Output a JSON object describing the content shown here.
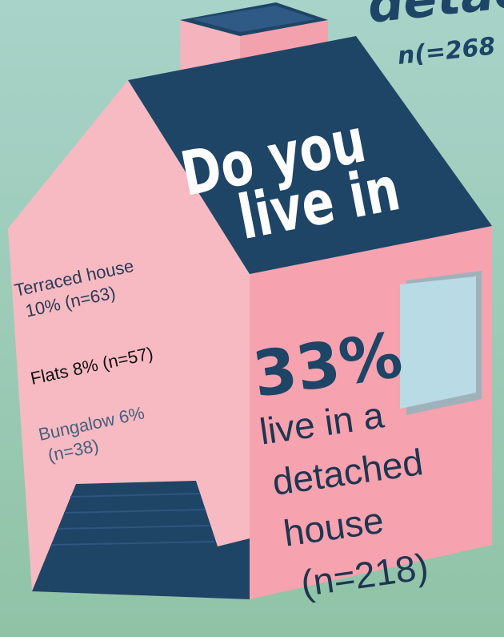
{
  "corner_text": {
    "word": "detac",
    "count": "n(=268"
  },
  "title": {
    "lines": [
      "Do you",
      "live in"
    ]
  },
  "left_labels": [
    {
      "lines": [
        "Terraced house",
        "10% (n=63)"
      ]
    },
    {
      "lines": [
        "Flats 8% (n=57)"
      ]
    },
    {
      "lines": [
        "Bungalow 6%",
        "(n=38)"
      ]
    }
  ],
  "main_stat": {
    "value": "33%",
    "lines": [
      "live in a",
      "detached",
      "house",
      " (n=218)"
    ]
  }
}
